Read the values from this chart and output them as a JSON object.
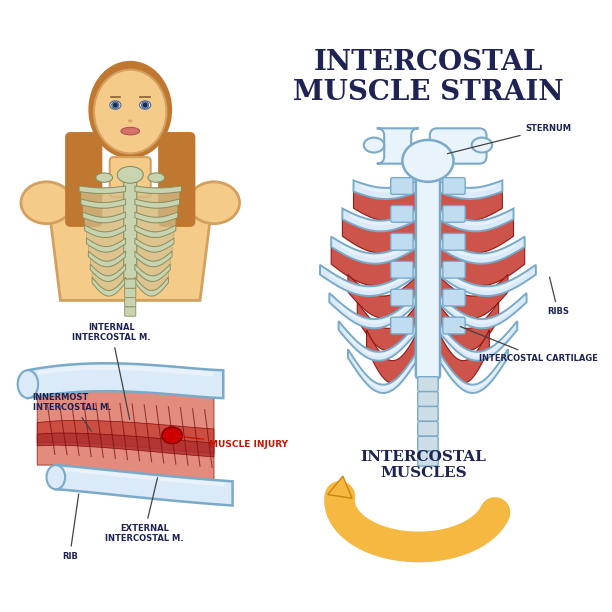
{
  "title_line1": "INTERCOSTAL",
  "title_line2": "MUSCLE STRAIN",
  "title_color": "#1e2354",
  "title_fontsize": 20,
  "bg_color": "#ffffff",
  "label_color": "#1e2354",
  "label_fontsize": 6.0,
  "red_label_color": "#cc1100",
  "rib_bone_color": "#daeaf8",
  "rib_bone_edge": "#7aaac8",
  "rib_bone_color2": "#eef5fc",
  "muscle_color": "#c9453a",
  "muscle_light": "#d9635a",
  "sternum_color": "#e8f3fc",
  "sternum_edge": "#7aaac8",
  "cartilage_color": "#c0dcf0",
  "arrow_color": "#f5b942",
  "arrow_edge": "#c8870a",
  "skin_color": "#f5cb8a",
  "skin_edge": "#d4a060",
  "hair_color": "#c07830",
  "mini_bone_color": "#c8d4b0",
  "mini_bone_edge": "#8a9060",
  "labels": {
    "sternum": "STERNUM",
    "ribs": "RIBS",
    "intercostal_cartilage": "INTERCOSTAL CARTILAGE",
    "intercostal_muscles": "INTERCOSTAL\nMUSCLES",
    "internal": "INTERNAL\nINTERCOSTAL M.",
    "innermost": "INNERMOST\nINTERCOSTAL M.",
    "external": "EXTERNAL\nINTERCOSTAL M.",
    "muscle_injury": "MUSCLE INJURY",
    "rib_label": "RIB"
  }
}
